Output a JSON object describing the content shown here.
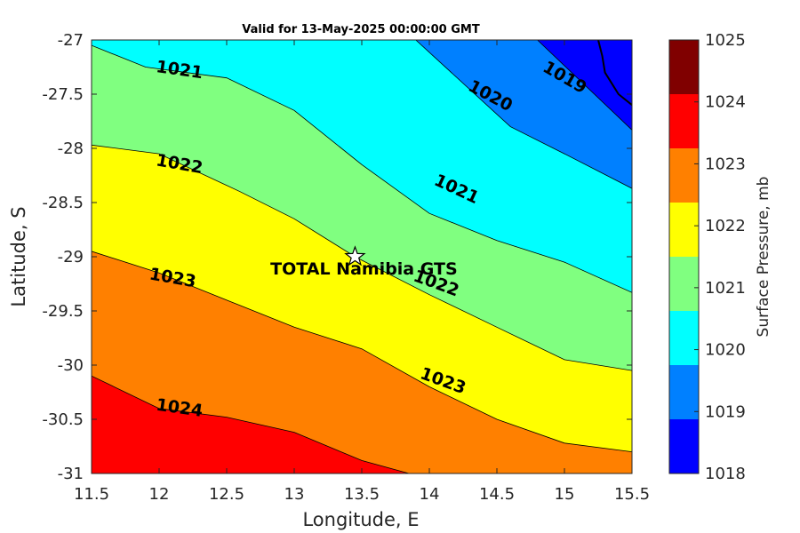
{
  "chart_data": {
    "type": "contour",
    "title": "Valid for 13-May-2025 00:00:00 GMT",
    "xlabel": "Longitude, E",
    "ylabel": "Latitude, S",
    "xlim": [
      11.5,
      15.5
    ],
    "ylim": [
      -31,
      -27
    ],
    "xticks": [
      "11.5",
      "12",
      "12.5",
      "13",
      "13.5",
      "14",
      "14.5",
      "15",
      "15.5"
    ],
    "yticks": [
      "-27",
      "-27.5",
      "-28",
      "-28.5",
      "-29",
      "-29.5",
      "-30",
      "-30.5",
      "-31"
    ],
    "colorbar": {
      "label": "Surface Pressure, mb",
      "levels": [
        1018,
        1019,
        1020,
        1021,
        1022,
        1023,
        1024,
        1025
      ],
      "colors": [
        "#0000ff",
        "#0080ff",
        "#00ffff",
        "#80ff80",
        "#ffff00",
        "#ff8000",
        "#ff0000",
        "#800000"
      ]
    },
    "contours": [
      {
        "level": 1019,
        "label": "1019",
        "points": [
          [
            14.8,
            -27
          ],
          [
            15.5,
            -27.83
          ]
        ]
      },
      {
        "level": 1020,
        "label": "1020",
        "points": [
          [
            13.9,
            -27
          ],
          [
            14.6,
            -27.8
          ],
          [
            15.0,
            -28.05
          ],
          [
            15.5,
            -28.37
          ]
        ]
      },
      {
        "level": 1021,
        "label": "1021",
        "points": [
          [
            11.5,
            -27.05
          ],
          [
            11.9,
            -27.25
          ],
          [
            12.5,
            -27.35
          ],
          [
            13.0,
            -27.65
          ],
          [
            13.5,
            -28.15
          ],
          [
            14.0,
            -28.6
          ],
          [
            14.5,
            -28.85
          ],
          [
            15.0,
            -29.05
          ],
          [
            15.5,
            -29.33
          ]
        ]
      },
      {
        "level": 1022,
        "label": "1022",
        "points": [
          [
            11.5,
            -27.97
          ],
          [
            12.0,
            -28.05
          ],
          [
            12.6,
            -28.4
          ],
          [
            13.0,
            -28.65
          ],
          [
            13.45,
            -29.0
          ],
          [
            14.0,
            -29.35
          ],
          [
            14.5,
            -29.65
          ],
          [
            15.0,
            -29.95
          ],
          [
            15.5,
            -30.05
          ]
        ]
      },
      {
        "level": 1023,
        "label": "1023",
        "points": [
          [
            11.5,
            -28.95
          ],
          [
            12.0,
            -29.15
          ],
          [
            12.6,
            -29.45
          ],
          [
            13.0,
            -29.65
          ],
          [
            13.5,
            -29.85
          ],
          [
            14.0,
            -30.2
          ],
          [
            14.5,
            -30.5
          ],
          [
            15.0,
            -30.72
          ],
          [
            15.5,
            -30.8
          ]
        ]
      },
      {
        "level": 1024,
        "label": "1024",
        "points": [
          [
            11.5,
            -30.1
          ],
          [
            12.0,
            -30.4
          ],
          [
            12.5,
            -30.48
          ],
          [
            13.0,
            -30.62
          ],
          [
            13.5,
            -30.88
          ],
          [
            13.85,
            -31.0
          ]
        ]
      }
    ],
    "contour_labels": [
      {
        "text": "1019",
        "x": 15.0,
        "y": -27.35,
        "angle": 30
      },
      {
        "text": "1020",
        "x": 14.45,
        "y": -27.52,
        "angle": 28
      },
      {
        "text": "1021",
        "x": 12.15,
        "y": -27.28,
        "angle": 8
      },
      {
        "text": "1021",
        "x": 14.2,
        "y": -28.38,
        "angle": 25
      },
      {
        "text": "1022",
        "x": 12.15,
        "y": -28.15,
        "angle": 10
      },
      {
        "text": "1022",
        "x": 14.05,
        "y": -29.25,
        "angle": 20
      },
      {
        "text": "1023",
        "x": 12.1,
        "y": -29.2,
        "angle": 10
      },
      {
        "text": "1023",
        "x": 14.1,
        "y": -30.15,
        "angle": 20
      },
      {
        "text": "1024",
        "x": 12.15,
        "y": -30.4,
        "angle": 8
      }
    ],
    "coastline": [
      [
        15.25,
        -27
      ],
      [
        15.28,
        -27.15
      ],
      [
        15.3,
        -27.3
      ],
      [
        15.35,
        -27.4
      ],
      [
        15.4,
        -27.5
      ],
      [
        15.5,
        -27.6
      ]
    ],
    "site": {
      "name": "TOTAL Namibia GTS",
      "lon": 13.45,
      "lat": -29.0,
      "marker": "star"
    },
    "grid": false
  }
}
